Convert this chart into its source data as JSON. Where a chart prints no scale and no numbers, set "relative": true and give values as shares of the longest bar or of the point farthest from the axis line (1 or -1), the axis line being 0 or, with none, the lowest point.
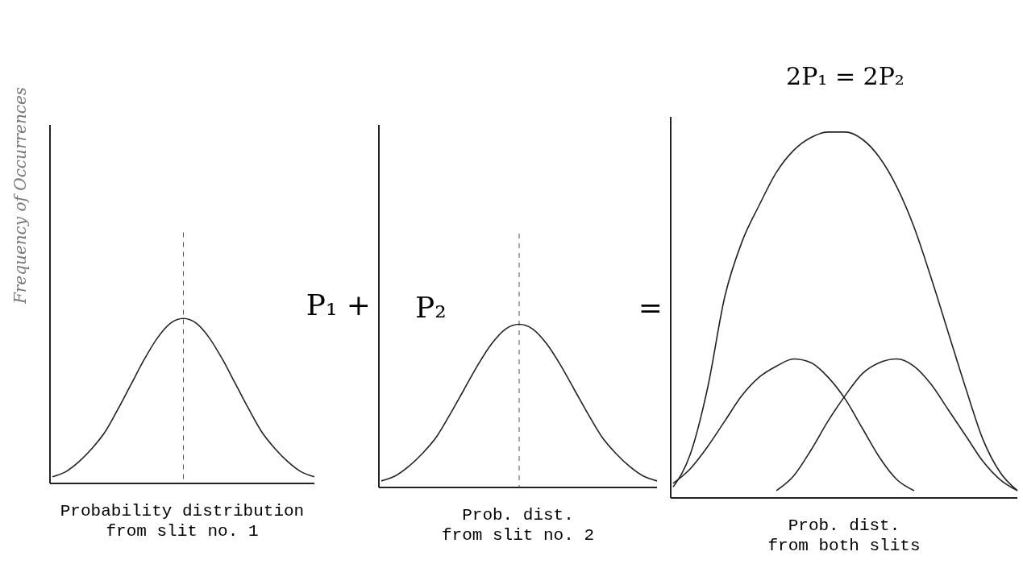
{
  "chart_data": [
    {
      "type": "line",
      "relative": true,
      "ylabel": "Frequency of Occurrences",
      "xlabel": "Probability distribution\nfrom slit no. 1",
      "annotations": [
        "P₁ +"
      ],
      "categories": [
        null,
        null,
        null,
        null,
        null,
        null,
        null,
        null,
        null,
        null,
        null,
        null,
        null,
        null,
        null,
        null,
        null,
        null,
        null,
        null,
        null
      ],
      "series": [
        {
          "color": "#222222",
          "values": [
            0.04,
            0.07,
            0.13,
            0.21,
            0.31,
            0.45,
            0.6,
            0.75,
            0.88,
            0.97,
            1,
            0.97,
            0.88,
            0.75,
            0.6,
            0.45,
            0.31,
            0.21,
            0.13,
            0.07,
            0.04
          ]
        }
      ]
    },
    {
      "type": "line",
      "relative": true,
      "xlabel": "Prob. dist.\nfrom slit no. 2",
      "annotations": [
        "P₂",
        "="
      ],
      "categories": [
        null,
        null,
        null,
        null,
        null,
        null,
        null,
        null,
        null,
        null,
        null,
        null,
        null,
        null,
        null,
        null,
        null,
        null,
        null,
        null,
        null
      ],
      "series": [
        {
          "color": "#222222",
          "values": [
            0.04,
            0.07,
            0.13,
            0.21,
            0.31,
            0.45,
            0.6,
            0.75,
            0.88,
            0.97,
            1,
            0.97,
            0.88,
            0.75,
            0.6,
            0.45,
            0.31,
            0.21,
            0.13,
            0.07,
            0.04
          ]
        }
      ]
    },
    {
      "type": "line",
      "relative": true,
      "title": "2P₁ = 2P₂",
      "xlabel": "Prob. dist.\nfrom both slits",
      "categories": [
        null,
        null,
        null,
        null,
        null,
        null,
        null,
        null,
        null,
        null,
        null,
        null,
        null,
        null,
        null,
        null,
        null,
        null,
        null,
        null,
        null
      ],
      "series": [
        {
          "color": "#222222",
          "values": [
            0.03,
            0.12,
            0.3,
            0.55,
            0.7,
            0.8,
            0.89,
            0.95,
            0.985,
            1,
            1,
            0.98,
            0.93,
            0.85,
            0.74,
            0.6,
            0.45,
            0.3,
            0.16,
            0.07,
            0.02
          ]
        },
        {
          "color": "#222222",
          "values": [
            0.04,
            0.08,
            0.14,
            0.21,
            0.28,
            0.33,
            0.36,
            0.38,
            0.37,
            0.33,
            0.27,
            0.19,
            0.11,
            0.05,
            0.02,
            null,
            null,
            null,
            null,
            null,
            null
          ]
        },
        {
          "color": "#222222",
          "values": [
            null,
            null,
            null,
            null,
            null,
            null,
            0.02,
            0.06,
            0.13,
            0.21,
            0.28,
            0.34,
            0.37,
            0.38,
            0.36,
            0.31,
            0.24,
            0.17,
            0.1,
            0.05,
            0.02
          ]
        }
      ]
    }
  ]
}
